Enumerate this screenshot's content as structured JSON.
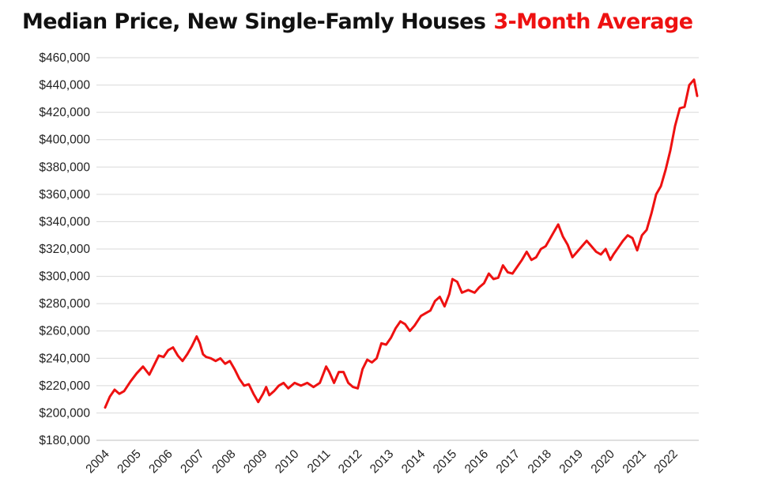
{
  "chart_data": {
    "type": "line",
    "title": "Median Price, New Single-Famly Houses",
    "subtitle": "3-Month Average",
    "xlabel": "",
    "ylabel": "",
    "ylim": [
      180000,
      460000
    ],
    "xlim": [
      2004.0,
      2022.75
    ],
    "grid": true,
    "legend": "none",
    "line_color": "#ee1111",
    "ytick_labels": [
      "$180,000",
      "$200,000",
      "$220,000",
      "$240,000",
      "$260,000",
      "$280,000",
      "$300,000",
      "$320,000",
      "$340,000",
      "$360,000",
      "$380,000",
      "$400,000",
      "$420,000",
      "$440,000",
      "$460,000"
    ],
    "ytick_values": [
      180000,
      200000,
      220000,
      240000,
      260000,
      280000,
      300000,
      320000,
      340000,
      360000,
      380000,
      400000,
      420000,
      440000,
      460000
    ],
    "xtick_labels": [
      "2004",
      "2005",
      "2006",
      "2007",
      "2008",
      "2009",
      "2010",
      "2011",
      "2012",
      "2013",
      "2014",
      "2015",
      "2016",
      "2017",
      "2018",
      "2019",
      "2020",
      "2021",
      "2022"
    ],
    "xtick_values": [
      2004,
      2005,
      2006,
      2007,
      2008,
      2009,
      2010,
      2011,
      2012,
      2013,
      2014,
      2015,
      2016,
      2017,
      2018,
      2019,
      2020,
      2021,
      2022
    ],
    "series": [
      {
        "x": [
          2004.0,
          2004.15,
          2004.3,
          2004.45,
          2004.6,
          2004.8,
          2005.0,
          2005.2,
          2005.4,
          2005.55,
          2005.7,
          2005.85,
          2006.0,
          2006.15,
          2006.3,
          2006.45,
          2006.6,
          2006.75,
          2006.9,
          2007.0,
          2007.1,
          2007.2,
          2007.35,
          2007.5,
          2007.65,
          2007.8,
          2007.95,
          2008.1,
          2008.25,
          2008.4,
          2008.55,
          2008.7,
          2008.85,
          2009.0,
          2009.1,
          2009.2,
          2009.35,
          2009.5,
          2009.65,
          2009.8,
          2010.0,
          2010.2,
          2010.4,
          2010.6,
          2010.8,
          2011.0,
          2011.1,
          2011.25,
          2011.4,
          2011.55,
          2011.7,
          2011.85,
          2012.0,
          2012.15,
          2012.3,
          2012.45,
          2012.6,
          2012.75,
          2012.9,
          2013.05,
          2013.2,
          2013.35,
          2013.5,
          2013.65,
          2013.8,
          2014.0,
          2014.15,
          2014.3,
          2014.45,
          2014.6,
          2014.75,
          2014.9,
          2015.0,
          2015.15,
          2015.3,
          2015.5,
          2015.7,
          2015.85,
          2016.0,
          2016.15,
          2016.3,
          2016.45,
          2016.6,
          2016.75,
          2016.9,
          2017.05,
          2017.2,
          2017.35,
          2017.5,
          2017.65,
          2017.8,
          2017.95,
          2018.05,
          2018.2,
          2018.35,
          2018.5,
          2018.65,
          2018.8,
          2018.95,
          2019.1,
          2019.25,
          2019.4,
          2019.55,
          2019.7,
          2019.85,
          2020.0,
          2020.1,
          2020.25,
          2020.4,
          2020.55,
          2020.7,
          2020.85,
          2021.0,
          2021.15,
          2021.3,
          2021.45,
          2021.6,
          2021.75,
          2021.9,
          2022.05,
          2022.2,
          2022.35,
          2022.5,
          2022.65,
          2022.75
        ],
        "y": [
          204000,
          212000,
          217000,
          214000,
          216000,
          223000,
          229000,
          234000,
          228000,
          235000,
          242000,
          241000,
          246000,
          248000,
          242000,
          238000,
          243000,
          249000,
          256000,
          251000,
          243000,
          241000,
          240000,
          238000,
          240000,
          236000,
          238000,
          232000,
          225000,
          220000,
          221000,
          214000,
          208000,
          214000,
          219000,
          213000,
          216000,
          220000,
          222000,
          218000,
          222000,
          220000,
          222000,
          219000,
          222000,
          234000,
          230000,
          222000,
          230000,
          230000,
          222000,
          219000,
          218000,
          232000,
          239000,
          237000,
          240000,
          251000,
          250000,
          255000,
          262000,
          267000,
          265000,
          260000,
          264000,
          271000,
          273000,
          275000,
          282000,
          285000,
          278000,
          287000,
          298000,
          296000,
          288000,
          290000,
          288000,
          292000,
          295000,
          302000,
          298000,
          299000,
          308000,
          303000,
          302000,
          307000,
          312000,
          318000,
          312000,
          314000,
          320000,
          322000,
          326000,
          332000,
          338000,
          329000,
          323000,
          314000,
          318000,
          322000,
          326000,
          322000,
          318000,
          316000,
          320000,
          312000,
          316000,
          321000,
          326000,
          330000,
          328000,
          319000,
          330000,
          334000,
          346000,
          360000,
          366000,
          378000,
          392000,
          410000,
          423000,
          424000,
          440000,
          444000,
          432000
        ]
      }
    ]
  }
}
